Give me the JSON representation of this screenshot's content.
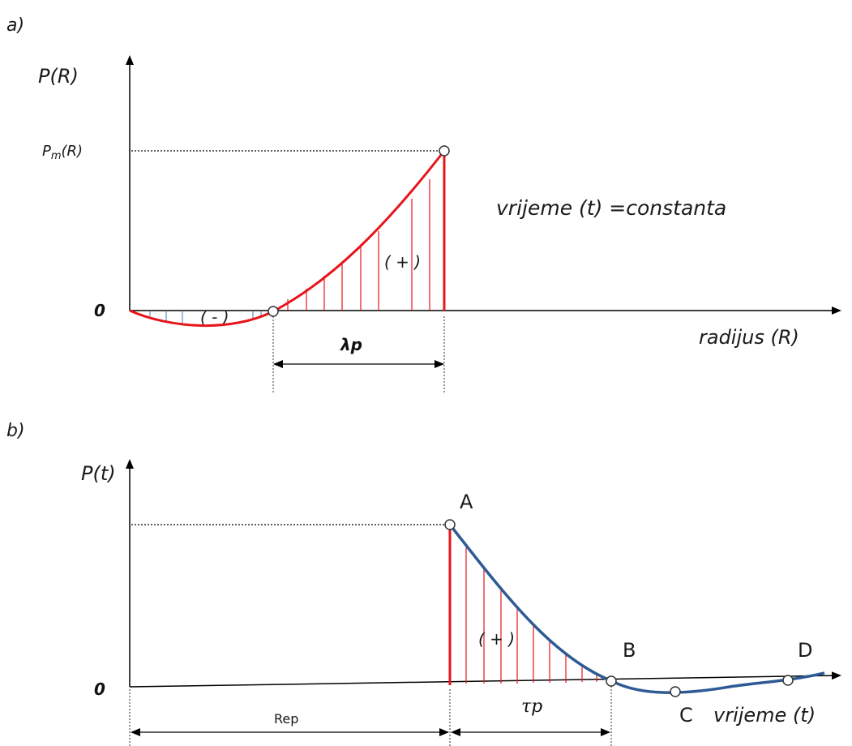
{
  "panel_a": {
    "label": "a)",
    "y_axis_label": "P(R)",
    "pm_label_main": "P",
    "pm_label_sub": "m",
    "pm_label_rest": "(R)",
    "zero_label": "0",
    "x_axis_label": "radijus (R)",
    "note": "vrijeme (t) =constanta",
    "neg_region_label": "( - )",
    "pos_region_label": "( + )",
    "span_label": "λp",
    "colors": {
      "curve": "#e8141b",
      "neg_hatch": "#3a7ab8",
      "axis": "#000000"
    }
  },
  "panel_b": {
    "label": "b)",
    "y_axis_label": "P(t)",
    "zero_label": "0",
    "x_axis_label": "vrijeme (t)",
    "pos_region_label": "( + )",
    "point_A": "A",
    "point_B": "B",
    "point_C": "C",
    "point_D": "D",
    "span_rep_label": "Rep",
    "span_tau_label": "τp",
    "colors": {
      "curve": "#2e5b95",
      "hatch": "#e8141b",
      "axis": "#000000"
    }
  }
}
